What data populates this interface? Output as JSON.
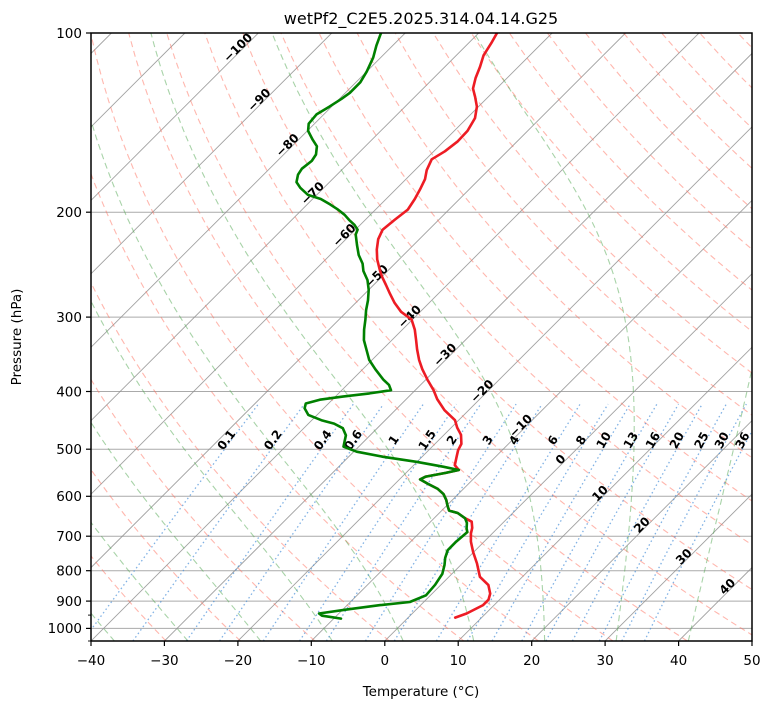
{
  "chart_data": {
    "type": "line",
    "subtype": "skewt-log-p",
    "title": "wetPf2_C2E5.2025.314.04.14.G25",
    "xlabel": "Temperature (°C)",
    "ylabel": "Pressure (hPa)",
    "xlim": [
      -40,
      50
    ],
    "pressure_lim": [
      100,
      1050
    ],
    "skew_deg": 45,
    "grid": true,
    "x_ticks": [
      -40,
      -30,
      -20,
      -10,
      0,
      10,
      20,
      30,
      40,
      50
    ],
    "p_ticks": [
      100,
      200,
      300,
      400,
      500,
      600,
      700,
      800,
      900,
      1000
    ],
    "p_minor_ticks": [
      950,
      1050
    ],
    "isotherms": {
      "start": -170,
      "end": 50,
      "step": 10
    },
    "isotherm_labels": [
      {
        "t": -100,
        "p": 107
      },
      {
        "t": -90,
        "p": 131
      },
      {
        "t": -80,
        "p": 156
      },
      {
        "t": -70,
        "p": 188
      },
      {
        "t": -60,
        "p": 221
      },
      {
        "t": -50,
        "p": 259
      },
      {
        "t": -40,
        "p": 303
      },
      {
        "t": -30,
        "p": 351
      },
      {
        "t": -20,
        "p": 404
      },
      {
        "t": -10,
        "p": 462
      },
      {
        "t": 0,
        "p": 526
      },
      {
        "t": 10,
        "p": 600
      },
      {
        "t": 20,
        "p": 678
      },
      {
        "t": 30,
        "p": 766
      },
      {
        "t": 40,
        "p": 860
      }
    ],
    "dry_adiabats": {
      "theta_start": 220,
      "theta_end": 500,
      "step": 10
    },
    "moist_adiabats": {
      "t0_start": -40,
      "t0_end": 80,
      "step": 10
    },
    "mixing_ratios": {
      "values": [
        0.1,
        0.2,
        0.4,
        0.6,
        1,
        1.5,
        2,
        3,
        4,
        6,
        8,
        10,
        13,
        16,
        20,
        25,
        30,
        36
      ],
      "label_p": 487,
      "p_top": 420,
      "p_bottom": 1050
    },
    "temperature_profile": [
      [
        100,
        -67.5
      ],
      [
        104,
        -66.9
      ],
      [
        109,
        -66.3
      ],
      [
        114,
        -65.2
      ],
      [
        119,
        -64.3
      ],
      [
        124,
        -63.2
      ],
      [
        128,
        -61.8
      ],
      [
        133,
        -60.2
      ],
      [
        139,
        -58.9
      ],
      [
        146,
        -58.2
      ],
      [
        152,
        -58.1
      ],
      [
        158,
        -58.5
      ],
      [
        163,
        -59.2
      ],
      [
        170,
        -58.4
      ],
      [
        176,
        -57.4
      ],
      [
        183,
        -56.7
      ],
      [
        190,
        -56.1
      ],
      [
        198,
        -55.6
      ],
      [
        206,
        -56.0
      ],
      [
        214,
        -56.3
      ],
      [
        222,
        -55.6
      ],
      [
        231,
        -54.4
      ],
      [
        240,
        -53.0
      ],
      [
        250,
        -51.2
      ],
      [
        257,
        -49.9
      ],
      [
        265,
        -48.3
      ],
      [
        274,
        -46.6
      ],
      [
        284,
        -44.7
      ],
      [
        294,
        -42.6
      ],
      [
        303,
        -40.1
      ],
      [
        315,
        -38.3
      ],
      [
        328,
        -36.7
      ],
      [
        340,
        -35.3
      ],
      [
        354,
        -33.6
      ],
      [
        367,
        -31.9
      ],
      [
        382,
        -29.8
      ],
      [
        398,
        -27.5
      ],
      [
        412,
        -25.8
      ],
      [
        430,
        -23.3
      ],
      [
        447,
        -20.5
      ],
      [
        460,
        -19.2
      ],
      [
        473,
        -17.7
      ],
      [
        490,
        -16.4
      ],
      [
        502,
        -16.0
      ],
      [
        515,
        -15.3
      ],
      [
        532,
        -14.4
      ],
      [
        542,
        -13.2
      ],
      [
        548,
        -14.6
      ],
      [
        556,
        -16.8
      ],
      [
        562,
        -17.2
      ],
      [
        572,
        -15.5
      ],
      [
        583,
        -13.5
      ],
      [
        595,
        -12.0
      ],
      [
        609,
        -10.8
      ],
      [
        622,
        -9.9
      ],
      [
        634,
        -9.0
      ],
      [
        640,
        -7.5
      ],
      [
        653,
        -5.8
      ],
      [
        662,
        -4.4
      ],
      [
        678,
        -3.5
      ],
      [
        693,
        -2.9
      ],
      [
        715,
        -1.8
      ],
      [
        744,
        -0.1
      ],
      [
        778,
        2.0
      ],
      [
        819,
        4.2
      ],
      [
        846,
        6.5
      ],
      [
        874,
        7.9
      ],
      [
        895,
        8.5
      ],
      [
        914,
        8.5
      ],
      [
        944,
        7.4
      ],
      [
        959,
        6.4
      ]
    ],
    "dewpoint_profile": [
      [
        100,
        -83.3
      ],
      [
        105,
        -82.2
      ],
      [
        110,
        -81.0
      ],
      [
        116,
        -80.0
      ],
      [
        121,
        -79.4
      ],
      [
        126,
        -79.4
      ],
      [
        129,
        -79.7
      ],
      [
        133,
        -80.3
      ],
      [
        137,
        -81.0
      ],
      [
        142,
        -80.8
      ],
      [
        146,
        -79.9
      ],
      [
        151,
        -78.1
      ],
      [
        155,
        -76.6
      ],
      [
        160,
        -75.6
      ],
      [
        164,
        -75.3
      ],
      [
        169,
        -75.6
      ],
      [
        173,
        -75.3
      ],
      [
        178,
        -74.5
      ],
      [
        182,
        -73.2
      ],
      [
        187,
        -71.2
      ],
      [
        190,
        -68.9
      ],
      [
        194,
        -66.9
      ],
      [
        198,
        -65.1
      ],
      [
        202,
        -63.5
      ],
      [
        206,
        -62.2
      ],
      [
        210,
        -60.8
      ],
      [
        214,
        -59.7
      ],
      [
        218,
        -59.3
      ],
      [
        227,
        -57.7
      ],
      [
        236,
        -56.1
      ],
      [
        244,
        -54.4
      ],
      [
        251,
        -53.3
      ],
      [
        260,
        -51.5
      ],
      [
        270,
        -50.0
      ],
      [
        281,
        -48.7
      ],
      [
        292,
        -47.6
      ],
      [
        303,
        -46.4
      ],
      [
        315,
        -45.2
      ],
      [
        328,
        -43.8
      ],
      [
        340,
        -42.2
      ],
      [
        354,
        -40.4
      ],
      [
        367,
        -38.3
      ],
      [
        382,
        -35.8
      ],
      [
        390,
        -34.3
      ],
      [
        398,
        -33.3
      ],
      [
        403,
        -35.8
      ],
      [
        408,
        -39.0
      ],
      [
        413,
        -41.7
      ],
      [
        419,
        -43.1
      ],
      [
        427,
        -42.6
      ],
      [
        438,
        -41.2
      ],
      [
        447,
        -38.7
      ],
      [
        453,
        -36.5
      ],
      [
        461,
        -34.7
      ],
      [
        474,
        -33.3
      ],
      [
        486,
        -32.6
      ],
      [
        495,
        -32.1
      ],
      [
        505,
        -29.6
      ],
      [
        515,
        -25.3
      ],
      [
        525,
        -20.1
      ],
      [
        535,
        -15.8
      ],
      [
        542,
        -13.2
      ],
      [
        548,
        -14.6
      ],
      [
        556,
        -16.8
      ],
      [
        562,
        -17.2
      ],
      [
        572,
        -15.5
      ],
      [
        583,
        -13.5
      ],
      [
        595,
        -12.0
      ],
      [
        609,
        -10.8
      ],
      [
        622,
        -9.9
      ],
      [
        634,
        -9.0
      ],
      [
        640,
        -7.5
      ],
      [
        653,
        -5.8
      ],
      [
        665,
        -4.9
      ],
      [
        679,
        -4.2
      ],
      [
        689,
        -3.6
      ],
      [
        715,
        -3.8
      ],
      [
        739,
        -3.8
      ],
      [
        761,
        -3.1
      ],
      [
        783,
        -2.2
      ],
      [
        810,
        -1.3
      ],
      [
        845,
        -0.8
      ],
      [
        880,
        -0.6
      ],
      [
        903,
        -1.9
      ],
      [
        914,
        -5.5
      ],
      [
        930,
        -9.5
      ],
      [
        944,
        -12.7
      ],
      [
        952,
        -12.0
      ],
      [
        958,
        -10.3
      ],
      [
        963,
        -9.0
      ]
    ],
    "colors": {
      "temperature": "#ed1c24",
      "dewpoint": "#008000",
      "isotherm": "#909090",
      "grid_horizontal": "#aaaaaa",
      "dry_adiabat": "#ff6f5e",
      "moist_adiabat": "#52a852",
      "mixing_ratio_line": "#4a90d9",
      "label_negative": "#1f77b4",
      "label_zero": "#7f7f7f",
      "label_positive": "#d62728"
    }
  }
}
